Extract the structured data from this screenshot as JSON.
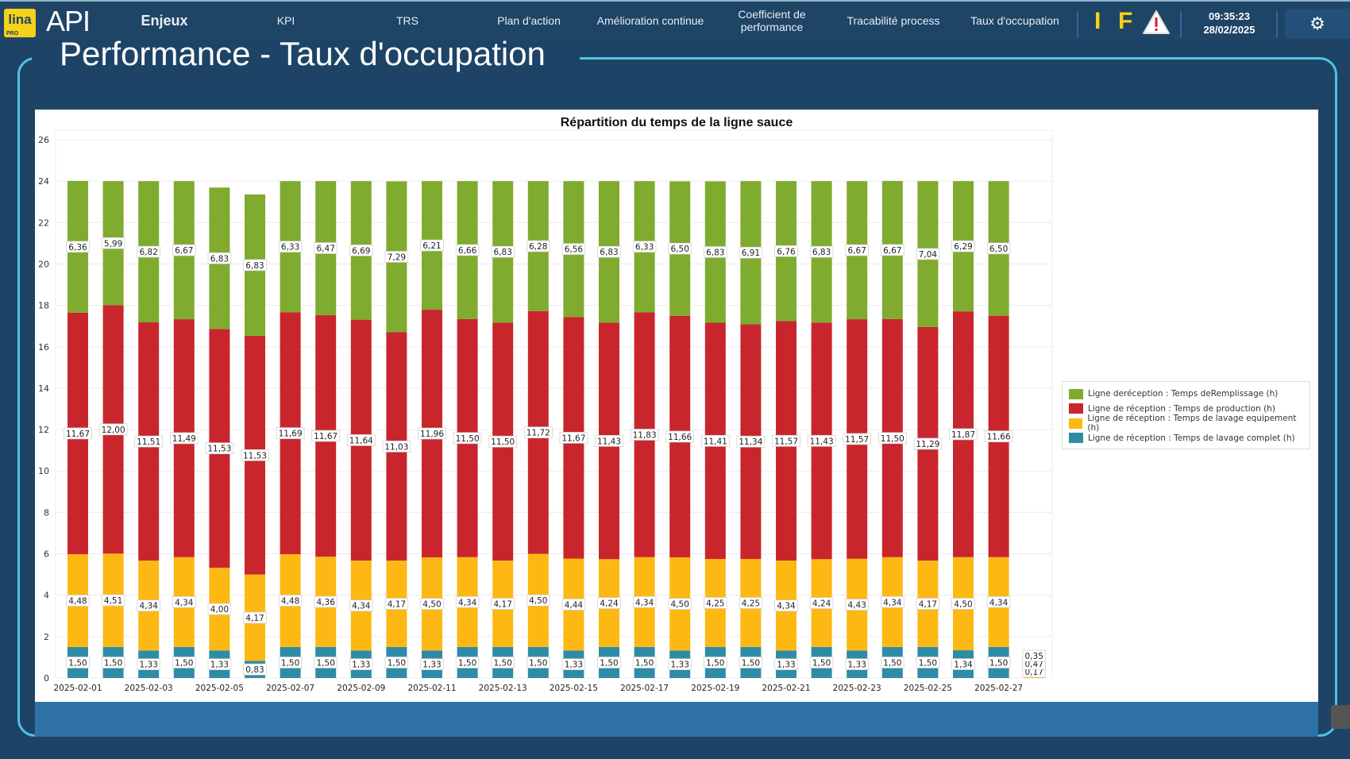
{
  "header": {
    "logo_lina": "lina",
    "logo_pro": "PRO",
    "logo_api": "API",
    "nav": [
      "Enjeux",
      "KPI",
      "TRS",
      "Plan d'action",
      "Amélioration continue",
      "Coefficient de performance",
      "Tracabilité process",
      "Taux d'occupation"
    ],
    "indicator_i": "I",
    "indicator_f": "F",
    "warning_icon": "warning-triangle-icon",
    "time": "09:35:23",
    "date": "28/02/2025",
    "settings_icon": "gear-icon"
  },
  "page_title": "Performance - Taux d'occupation",
  "chart_data": {
    "type": "bar",
    "stacked": true,
    "title": "Répartition du temps de la ligne sauce",
    "xlabel": "",
    "ylabel": "",
    "ylim": [
      0,
      26
    ],
    "yticks": [
      0,
      2,
      4,
      6,
      8,
      10,
      12,
      14,
      16,
      18,
      20,
      22,
      24,
      26
    ],
    "grid": true,
    "legend_position": "right",
    "categories": [
      "2025-02-01",
      "2025-02-02",
      "2025-02-03",
      "2025-02-04",
      "2025-02-05",
      "2025-02-06",
      "2025-02-07",
      "2025-02-08",
      "2025-02-09",
      "2025-02-10",
      "2025-02-11",
      "2025-02-12",
      "2025-02-13",
      "2025-02-14",
      "2025-02-15",
      "2025-02-16",
      "2025-02-17",
      "2025-02-18",
      "2025-02-19",
      "2025-02-20",
      "2025-02-21",
      "2025-02-22",
      "2025-02-23",
      "2025-02-24",
      "2025-02-25",
      "2025-02-26",
      "2025-02-27",
      "2025-02-28"
    ],
    "xtick_labels": [
      "2025-02-01",
      "2025-02-03",
      "2025-02-05",
      "2025-02-07",
      "2025-02-09",
      "2025-02-11",
      "2025-02-13",
      "2025-02-15",
      "2025-02-17",
      "2025-02-19",
      "2025-02-21",
      "2025-02-23",
      "2025-02-25",
      "2025-02-27"
    ],
    "series": [
      {
        "name": "Ligne de réception : Temps de lavage complet (h)",
        "color": "#2e8ca6",
        "values": [
          1.5,
          1.5,
          1.33,
          1.5,
          1.33,
          0.83,
          1.5,
          1.5,
          1.33,
          1.5,
          1.33,
          1.5,
          1.5,
          1.5,
          1.33,
          1.5,
          1.5,
          1.33,
          1.5,
          1.5,
          1.33,
          1.5,
          1.33,
          1.5,
          1.5,
          1.34,
          1.5,
          null
        ]
      },
      {
        "name": "Ligne de réception : Temps de lavage equipement (h)",
        "color": "#fdb813",
        "values": [
          4.48,
          4.51,
          4.34,
          4.34,
          4.0,
          4.17,
          4.48,
          4.36,
          4.34,
          4.17,
          4.5,
          4.34,
          4.17,
          4.5,
          4.44,
          4.24,
          4.34,
          4.5,
          4.25,
          4.25,
          4.34,
          4.24,
          4.43,
          4.34,
          4.17,
          4.5,
          4.34,
          0.17
        ]
      },
      {
        "name": "Ligne de réception : Temps de production (h)",
        "color": "#c8262c",
        "values": [
          11.67,
          12.0,
          11.51,
          11.49,
          11.53,
          11.53,
          11.69,
          11.67,
          11.64,
          11.03,
          11.96,
          11.5,
          11.5,
          11.72,
          11.67,
          11.43,
          11.83,
          11.66,
          11.41,
          11.34,
          11.57,
          11.43,
          11.57,
          11.5,
          11.29,
          11.87,
          11.66,
          0.47
        ]
      },
      {
        "name": "Ligne deréception : Temps deRemplissage (h)",
        "color": "#7fab2e",
        "values": [
          6.36,
          5.99,
          6.82,
          6.67,
          6.83,
          6.83,
          6.33,
          6.47,
          6.69,
          7.29,
          6.21,
          6.66,
          6.83,
          6.28,
          6.56,
          6.83,
          6.33,
          6.5,
          6.83,
          6.91,
          6.76,
          6.83,
          6.67,
          6.67,
          7.04,
          6.29,
          6.5,
          0.35
        ]
      }
    ],
    "legend_order": [
      3,
      2,
      1,
      0
    ]
  }
}
